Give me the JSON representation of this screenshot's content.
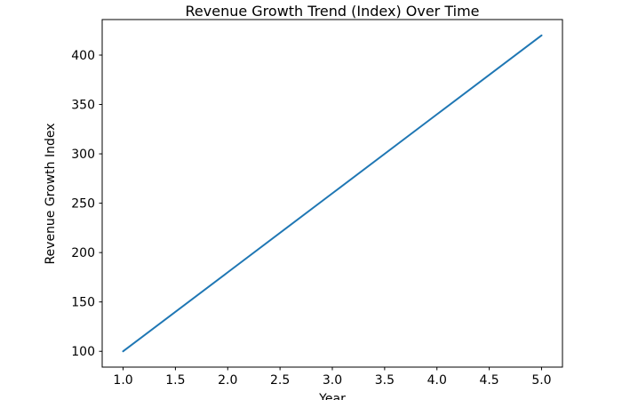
{
  "chart_data": {
    "type": "line",
    "title": "Revenue Growth Trend (Index) Over Time",
    "xlabel": "Year",
    "ylabel": "Revenue Growth Index",
    "x": [
      1,
      2,
      3,
      4,
      5
    ],
    "series": [
      {
        "name": "Revenue Growth Index",
        "values": [
          100,
          180,
          260,
          340,
          420
        ]
      }
    ],
    "xticks": [
      1.0,
      1.5,
      2.0,
      2.5,
      3.0,
      3.5,
      4.0,
      4.5,
      5.0
    ],
    "yticks": [
      100,
      150,
      200,
      250,
      300,
      350,
      400
    ],
    "xlim": [
      0.8,
      5.2
    ],
    "ylim": [
      84,
      436
    ],
    "grid": false,
    "legend": false,
    "colors": {
      "line": "#1f77b4",
      "spine": "#000000",
      "text": "#000000",
      "background": "#ffffff"
    }
  }
}
